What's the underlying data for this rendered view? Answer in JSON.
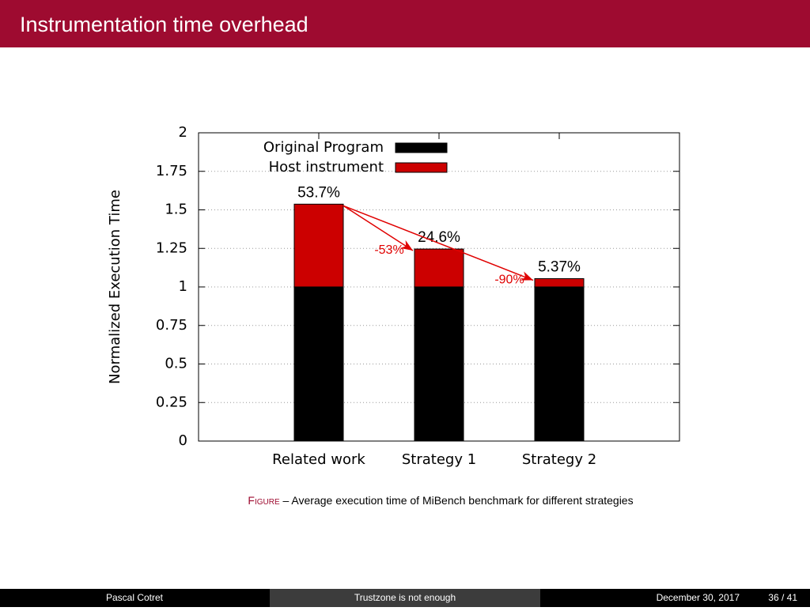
{
  "header": {
    "title": "Instrumentation time overhead"
  },
  "chart_data": {
    "type": "stacked_bar",
    "ylabel": "Normalized Execution Time",
    "categories": [
      "Related work",
      "Strategy 1",
      "Strategy 2"
    ],
    "series": [
      {
        "name": "Original Program",
        "color": "#000000",
        "values": [
          1,
          1,
          1
        ]
      },
      {
        "name": "Host instrument",
        "color": "#cc0000",
        "values": [
          0.537,
          0.246,
          0.0537
        ],
        "value_labels": [
          "53.7%",
          "24.6%",
          "5.37%"
        ]
      }
    ],
    "annotations": [
      {
        "text": "-53%",
        "color": "#e00000"
      },
      {
        "text": "-90%",
        "color": "#e00000"
      }
    ],
    "ylim": [
      0,
      2
    ],
    "yticks": [
      0,
      0.25,
      0.5,
      0.75,
      1,
      1.25,
      1.5,
      1.75,
      2
    ],
    "grid": true,
    "legend": "top"
  },
  "caption": {
    "label": "Figure",
    "text": "– Average execution time of MiBench benchmark for different strategies"
  },
  "footer": {
    "author": "Pascal Cotret",
    "title": "Trustzone is not enough",
    "date": "December 30, 2017",
    "page": "36 / 41"
  }
}
